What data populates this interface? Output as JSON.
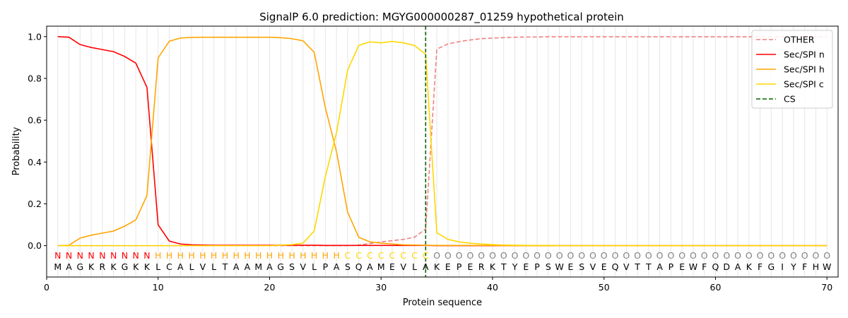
{
  "chart_data": {
    "type": "line",
    "title": "SignalP 6.0 prediction: MGYG000000287_01259 hypothetical protein",
    "xlabel": "Protein sequence",
    "ylabel": "Probability",
    "xlim": [
      0,
      71
    ],
    "ylim": [
      -0.15,
      1.05
    ],
    "x_ticks": [
      0,
      10,
      20,
      30,
      40,
      50,
      60,
      70
    ],
    "y_ticks": [
      0.0,
      0.2,
      0.4,
      0.6,
      0.8,
      1.0
    ],
    "x_tick_labels": [
      "0",
      "10",
      "20",
      "30",
      "40",
      "50",
      "60",
      "70"
    ],
    "y_tick_labels": [
      "0.0",
      "0.2",
      "0.4",
      "0.6",
      "0.8",
      "1.0"
    ],
    "grid": "vertical lines at every residue",
    "legend_position": "top-right",
    "sequence": "MAGKRKGKKLCALVLTAAMAGSVLPASQAMEVLAKEPERKTYEPSWESVEQVTTAPEWFQDAKFGIYFHW",
    "labels": "NNNNNNNNNHHHHHHHHHHHHHHHHHCCCCCCCCOOOOOOOOOOOOOOOOOOOOOOOOOOOOOOOOOOOO",
    "label_colors": {
      "N": "#ff0000",
      "H": "#ffa500",
      "C": "#ffd700",
      "O": "#808080"
    },
    "cleavage_site": 34,
    "series": [
      {
        "name": "OTHER",
        "color": "#f08080",
        "dash": true,
        "values": [
          0.0,
          0.0,
          0.0,
          0.0,
          0.0,
          0.0,
          0.0,
          0.0,
          0.0,
          0.0,
          0.0,
          0.0,
          0.0,
          0.0,
          0.0,
          0.0,
          0.0,
          0.0,
          0.0,
          0.0,
          0.0,
          0.0,
          0.0,
          0.0,
          0.0,
          0.0,
          0.0,
          0.003,
          0.01,
          0.018,
          0.024,
          0.03,
          0.04,
          0.08,
          0.94,
          0.965,
          0.976,
          0.984,
          0.99,
          0.993,
          0.995,
          0.997,
          0.998,
          0.998,
          0.999,
          0.999,
          0.999,
          0.999,
          0.999,
          0.999,
          0.999,
          0.999,
          0.999,
          0.999,
          0.999,
          0.999,
          0.999,
          0.999,
          0.999,
          0.999,
          0.999,
          0.999,
          0.999,
          0.999,
          0.999,
          0.999,
          0.999,
          0.999,
          0.999,
          0.999
        ]
      },
      {
        "name": "Sec/SPI n",
        "color": "#ff0000",
        "dash": false,
        "values": [
          1.0,
          0.997,
          0.962,
          0.948,
          0.938,
          0.928,
          0.905,
          0.873,
          0.757,
          0.1,
          0.022,
          0.008,
          0.004,
          0.003,
          0.002,
          0.002,
          0.002,
          0.002,
          0.002,
          0.002,
          0.002,
          0.002,
          0.002,
          0.002,
          0.001,
          0.001,
          0.001,
          0.001,
          0.001,
          0.001,
          0.001,
          0.001,
          0.001,
          0.001,
          0.0,
          0.0,
          0.0,
          0.0,
          0.0,
          0.0,
          0.0,
          0.0,
          0.0,
          0.0,
          0.0,
          0.0,
          0.0,
          0.0,
          0.0,
          0.0,
          0.0,
          0.0,
          0.0,
          0.0,
          0.0,
          0.0,
          0.0,
          0.0,
          0.0,
          0.0,
          0.0,
          0.0,
          0.0,
          0.0,
          0.0,
          0.0,
          0.0,
          0.0,
          0.0,
          0.0
        ]
      },
      {
        "name": "Sec/SPI h",
        "color": "#ffa500",
        "dash": false,
        "values": [
          0.0,
          0.002,
          0.036,
          0.05,
          0.06,
          0.07,
          0.093,
          0.123,
          0.24,
          0.898,
          0.978,
          0.993,
          0.996,
          0.997,
          0.997,
          0.997,
          0.997,
          0.997,
          0.997,
          0.997,
          0.995,
          0.99,
          0.98,
          0.925,
          0.66,
          0.45,
          0.16,
          0.04,
          0.018,
          0.012,
          0.008,
          0.004,
          0.003,
          0.002,
          0.001,
          0.001,
          0.001,
          0.001,
          0.001,
          0.001,
          0.0,
          0.0,
          0.0,
          0.0,
          0.0,
          0.0,
          0.0,
          0.0,
          0.0,
          0.0,
          0.0,
          0.0,
          0.0,
          0.0,
          0.0,
          0.0,
          0.0,
          0.0,
          0.0,
          0.0,
          0.0,
          0.0,
          0.0,
          0.0,
          0.0,
          0.0,
          0.0,
          0.0,
          0.0,
          0.0
        ]
      },
      {
        "name": "Sec/SPI c",
        "color": "#ffd700",
        "dash": false,
        "values": [
          0.0,
          0.0,
          0.0,
          0.0,
          0.0,
          0.0,
          0.0,
          0.0,
          0.0,
          0.0,
          0.0,
          0.0,
          0.0,
          0.0,
          0.0,
          0.0,
          0.0,
          0.0,
          0.0,
          0.0,
          0.002,
          0.005,
          0.012,
          0.07,
          0.33,
          0.54,
          0.84,
          0.958,
          0.975,
          0.97,
          0.977,
          0.97,
          0.958,
          0.915,
          0.062,
          0.03,
          0.018,
          0.012,
          0.008,
          0.005,
          0.003,
          0.002,
          0.001,
          0.001,
          0.001,
          0.0,
          0.0,
          0.0,
          0.0,
          0.0,
          0.0,
          0.0,
          0.0,
          0.0,
          0.0,
          0.0,
          0.0,
          0.0,
          0.0,
          0.0,
          0.0,
          0.0,
          0.0,
          0.0,
          0.0,
          0.0,
          0.0,
          0.0,
          0.0,
          0.0
        ]
      },
      {
        "name": "CS",
        "color": "#006400",
        "dash": true,
        "values": []
      }
    ]
  }
}
